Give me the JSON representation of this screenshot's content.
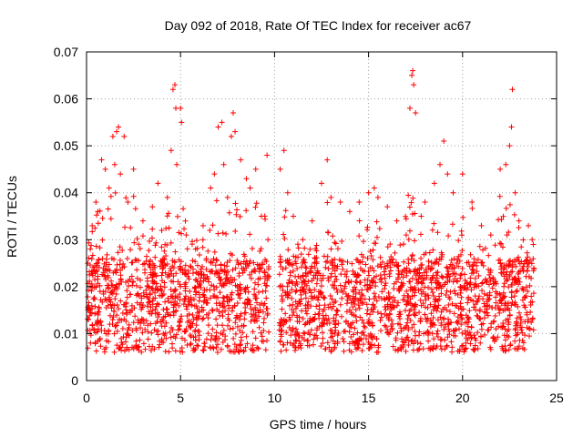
{
  "chart_data": {
    "type": "scatter",
    "title": "Day 092 of 2018, Rate Of TEC Index for receiver ac67",
    "xlabel": "GPS time / hours",
    "ylabel": "ROTI / TECUs",
    "xlim": [
      0,
      25
    ],
    "ylim": [
      0,
      0.07
    ],
    "x_ticks": [
      0,
      5,
      10,
      15,
      20,
      25
    ],
    "x_tick_labels": [
      "0",
      "5",
      "10",
      "15",
      "20",
      "25"
    ],
    "y_ticks": [
      0,
      0.01,
      0.02,
      0.03,
      0.04,
      0.05,
      0.06,
      0.07
    ],
    "y_tick_labels": [
      "0",
      "0.01",
      "0.02",
      "0.03",
      "0.04",
      "0.05",
      "0.06",
      "0.07"
    ],
    "grid": true,
    "marker": "plus",
    "color": "#ff0000",
    "data_gap_hours": [
      9.7,
      10.2
    ],
    "series": [
      {
        "name": "ROTI",
        "points": [
          [
            0.1,
            0.013
          ],
          [
            0.2,
            0.028
          ],
          [
            0.3,
            0.033
          ],
          [
            0.5,
            0.038
          ],
          [
            0.6,
            0.036
          ],
          [
            0.8,
            0.047
          ],
          [
            1.0,
            0.045
          ],
          [
            1.2,
            0.041
          ],
          [
            1.4,
            0.052
          ],
          [
            1.5,
            0.046
          ],
          [
            1.6,
            0.053
          ],
          [
            1.7,
            0.054
          ],
          [
            1.8,
            0.044
          ],
          [
            2.0,
            0.052
          ],
          [
            2.2,
            0.038
          ],
          [
            2.5,
            0.045
          ],
          [
            3.0,
            0.034
          ],
          [
            3.5,
            0.037
          ],
          [
            3.8,
            0.042
          ],
          [
            4.0,
            0.032
          ],
          [
            4.3,
            0.039
          ],
          [
            4.5,
            0.049
          ],
          [
            4.6,
            0.062
          ],
          [
            4.7,
            0.063
          ],
          [
            4.75,
            0.058
          ],
          [
            4.8,
            0.046
          ],
          [
            5.0,
            0.058
          ],
          [
            5.05,
            0.055
          ],
          [
            5.3,
            0.031
          ],
          [
            5.8,
            0.028
          ],
          [
            6.2,
            0.033
          ],
          [
            6.6,
            0.041
          ],
          [
            6.8,
            0.044
          ],
          [
            7.0,
            0.054
          ],
          [
            7.2,
            0.055
          ],
          [
            7.3,
            0.046
          ],
          [
            7.5,
            0.039
          ],
          [
            7.7,
            0.052
          ],
          [
            7.8,
            0.057
          ],
          [
            7.9,
            0.053
          ],
          [
            8.2,
            0.047
          ],
          [
            8.5,
            0.043
          ],
          [
            8.7,
            0.041
          ],
          [
            9.0,
            0.045
          ],
          [
            9.3,
            0.035
          ],
          [
            9.6,
            0.048
          ],
          [
            9.65,
            0.03
          ],
          [
            10.3,
            0.045
          ],
          [
            10.5,
            0.049
          ],
          [
            10.7,
            0.04
          ],
          [
            11.0,
            0.035
          ],
          [
            11.5,
            0.03
          ],
          [
            12.0,
            0.034
          ],
          [
            12.5,
            0.042
          ],
          [
            12.8,
            0.047
          ],
          [
            13.0,
            0.039
          ],
          [
            13.5,
            0.038
          ],
          [
            14.0,
            0.036
          ],
          [
            14.5,
            0.038
          ],
          [
            15.0,
            0.04
          ],
          [
            15.3,
            0.041
          ],
          [
            15.5,
            0.039
          ],
          [
            16.0,
            0.037
          ],
          [
            16.5,
            0.034
          ],
          [
            17.0,
            0.031
          ],
          [
            17.2,
            0.058
          ],
          [
            17.3,
            0.065
          ],
          [
            17.35,
            0.066
          ],
          [
            17.4,
            0.063
          ],
          [
            17.5,
            0.057
          ],
          [
            17.8,
            0.035
          ],
          [
            18.0,
            0.038
          ],
          [
            18.5,
            0.042
          ],
          [
            18.8,
            0.046
          ],
          [
            19.0,
            0.051
          ],
          [
            19.2,
            0.044
          ],
          [
            19.5,
            0.04
          ],
          [
            20.0,
            0.044
          ],
          [
            20.5,
            0.038
          ],
          [
            21.0,
            0.033
          ],
          [
            21.5,
            0.031
          ],
          [
            22.0,
            0.045
          ],
          [
            22.3,
            0.046
          ],
          [
            22.5,
            0.05
          ],
          [
            22.6,
            0.054
          ],
          [
            22.65,
            0.062
          ],
          [
            22.8,
            0.04
          ],
          [
            23.0,
            0.034
          ],
          [
            23.5,
            0.033
          ],
          [
            23.7,
            0.03
          ]
        ]
      }
    ]
  }
}
